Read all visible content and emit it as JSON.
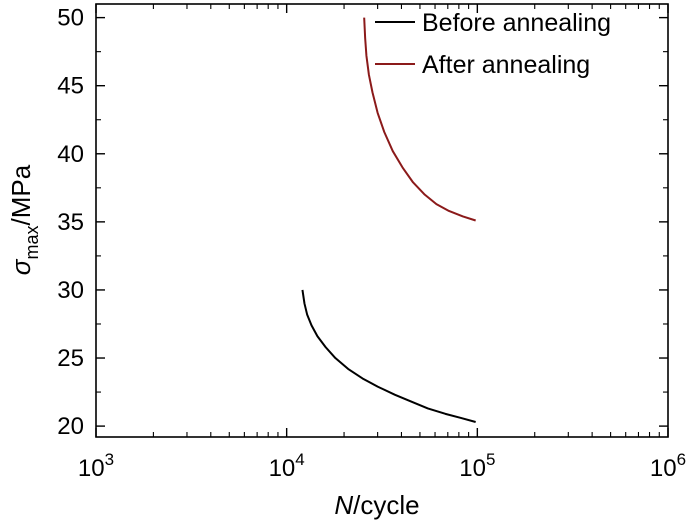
{
  "chart_data": {
    "type": "line",
    "title": "",
    "xlabel": {
      "symbol": "N",
      "unit": "/cycle"
    },
    "ylabel": {
      "symbol": "σ",
      "subscript": "max",
      "unit": "/MPa"
    },
    "x_scale": "log",
    "xlim": [
      1000,
      1000000
    ],
    "ylim": [
      19.2,
      51
    ],
    "x_ticks": [
      {
        "value": 1000,
        "base": "10",
        "exp": "3"
      },
      {
        "value": 10000,
        "base": "10",
        "exp": "4"
      },
      {
        "value": 100000,
        "base": "10",
        "exp": "5"
      },
      {
        "value": 1000000,
        "base": "10",
        "exp": "6"
      }
    ],
    "y_ticks": [
      20,
      25,
      30,
      35,
      40,
      45,
      50
    ],
    "grid": false,
    "legend_position": "top-right",
    "series": [
      {
        "name": "Before annealing",
        "color": "#000000",
        "points": [
          [
            12100,
            30.0
          ],
          [
            12400,
            29.0
          ],
          [
            12800,
            28.2
          ],
          [
            13500,
            27.4
          ],
          [
            14500,
            26.6
          ],
          [
            16000,
            25.8
          ],
          [
            18000,
            25.0
          ],
          [
            21000,
            24.2
          ],
          [
            25000,
            23.5
          ],
          [
            30000,
            22.9
          ],
          [
            37000,
            22.3
          ],
          [
            45000,
            21.8
          ],
          [
            55000,
            21.3
          ],
          [
            68000,
            20.9
          ],
          [
            82000,
            20.6
          ],
          [
            98000,
            20.3
          ]
        ]
      },
      {
        "name": "After annealing",
        "color": "#8b1a1a",
        "points": [
          [
            25500,
            50.0
          ],
          [
            25800,
            48.5
          ],
          [
            26200,
            47.2
          ],
          [
            27000,
            45.8
          ],
          [
            28200,
            44.5
          ],
          [
            30000,
            43.0
          ],
          [
            32500,
            41.6
          ],
          [
            36000,
            40.2
          ],
          [
            40500,
            39.0
          ],
          [
            46000,
            37.9
          ],
          [
            53000,
            37.0
          ],
          [
            61000,
            36.3
          ],
          [
            71000,
            35.8
          ],
          [
            84000,
            35.4
          ],
          [
            98000,
            35.1
          ]
        ]
      }
    ]
  }
}
